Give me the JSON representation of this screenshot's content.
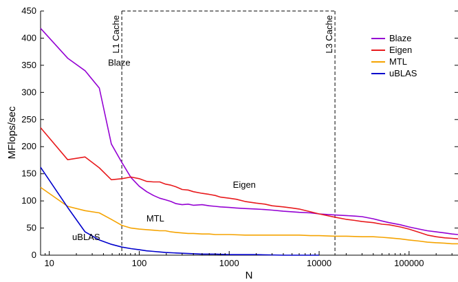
{
  "chart_data": {
    "type": "line",
    "xlabel": "N",
    "ylabel": "MFlops/sec",
    "x_scale": "log",
    "xlim": [
      8,
      350000
    ],
    "ylim": [
      0,
      450
    ],
    "x_ticks": [
      {
        "value": 10,
        "label": "10"
      },
      {
        "value": 100,
        "label": "100"
      },
      {
        "value": 1000,
        "label": "1000"
      },
      {
        "value": 10000,
        "label": "10000"
      },
      {
        "value": 100000,
        "label": "100000"
      }
    ],
    "y_ticks": [
      0,
      50,
      100,
      150,
      200,
      250,
      300,
      350,
      400,
      450
    ],
    "grid": false,
    "legend_position": "top-right",
    "series": [
      {
        "name": "Blaze",
        "color": "#9400d3",
        "points": [
          [
            8,
            418
          ],
          [
            16,
            363
          ],
          [
            25,
            340
          ],
          [
            36,
            308
          ],
          [
            49,
            205
          ],
          [
            64,
            171
          ],
          [
            81,
            143
          ],
          [
            100,
            127
          ],
          [
            121,
            117
          ],
          [
            144,
            110
          ],
          [
            169,
            105
          ],
          [
            196,
            102
          ],
          [
            225,
            99
          ],
          [
            256,
            95
          ],
          [
            300,
            93
          ],
          [
            350,
            94
          ],
          [
            400,
            92
          ],
          [
            500,
            93
          ],
          [
            600,
            91
          ],
          [
            700,
            90
          ],
          [
            800,
            89
          ],
          [
            1000,
            88
          ],
          [
            1200,
            87
          ],
          [
            1500,
            86
          ],
          [
            2000,
            85
          ],
          [
            2500,
            84
          ],
          [
            3000,
            83
          ],
          [
            4000,
            81
          ],
          [
            5000,
            80
          ],
          [
            6000,
            79
          ],
          [
            8000,
            78
          ],
          [
            10000,
            76
          ],
          [
            15000,
            74
          ],
          [
            20000,
            73
          ],
          [
            25000,
            72
          ],
          [
            30000,
            71
          ],
          [
            40000,
            67
          ],
          [
            50000,
            63
          ],
          [
            60000,
            60
          ],
          [
            80000,
            56
          ],
          [
            100000,
            52
          ],
          [
            130000,
            48
          ],
          [
            160000,
            45
          ],
          [
            200000,
            43
          ],
          [
            250000,
            41
          ],
          [
            300000,
            39
          ],
          [
            350000,
            38
          ]
        ]
      },
      {
        "name": "Eigen",
        "color": "#e8191c",
        "points": [
          [
            8,
            235
          ],
          [
            16,
            176
          ],
          [
            25,
            181
          ],
          [
            36,
            161
          ],
          [
            49,
            139
          ],
          [
            64,
            141
          ],
          [
            81,
            144
          ],
          [
            100,
            141
          ],
          [
            121,
            136
          ],
          [
            144,
            135
          ],
          [
            169,
            135
          ],
          [
            196,
            131
          ],
          [
            225,
            129
          ],
          [
            256,
            126
          ],
          [
            300,
            121
          ],
          [
            350,
            120
          ],
          [
            400,
            117
          ],
          [
            500,
            114
          ],
          [
            600,
            112
          ],
          [
            700,
            110
          ],
          [
            800,
            107
          ],
          [
            1000,
            105
          ],
          [
            1200,
            103
          ],
          [
            1500,
            99
          ],
          [
            2000,
            96
          ],
          [
            2500,
            94
          ],
          [
            3000,
            91
          ],
          [
            4000,
            89
          ],
          [
            5000,
            87
          ],
          [
            6000,
            85
          ],
          [
            8000,
            80
          ],
          [
            10000,
            76
          ],
          [
            15000,
            70
          ],
          [
            20000,
            66
          ],
          [
            25000,
            64
          ],
          [
            30000,
            62
          ],
          [
            40000,
            60
          ],
          [
            50000,
            57
          ],
          [
            60000,
            56
          ],
          [
            80000,
            52
          ],
          [
            100000,
            48
          ],
          [
            130000,
            42
          ],
          [
            160000,
            37
          ],
          [
            200000,
            34
          ],
          [
            250000,
            32
          ],
          [
            300000,
            31
          ],
          [
            350000,
            30
          ]
        ]
      },
      {
        "name": "MTL",
        "color": "#f5a300",
        "points": [
          [
            8,
            125
          ],
          [
            16,
            90
          ],
          [
            25,
            82
          ],
          [
            36,
            78
          ],
          [
            49,
            66
          ],
          [
            64,
            55
          ],
          [
            81,
            50
          ],
          [
            100,
            48
          ],
          [
            121,
            47
          ],
          [
            144,
            46
          ],
          [
            169,
            45
          ],
          [
            196,
            45
          ],
          [
            225,
            43
          ],
          [
            256,
            42
          ],
          [
            300,
            41
          ],
          [
            350,
            40
          ],
          [
            400,
            40
          ],
          [
            500,
            39
          ],
          [
            600,
            39
          ],
          [
            700,
            38
          ],
          [
            800,
            38
          ],
          [
            1000,
            38
          ],
          [
            1500,
            37
          ],
          [
            2000,
            37
          ],
          [
            3000,
            37
          ],
          [
            4000,
            37
          ],
          [
            5000,
            37
          ],
          [
            6000,
            37
          ],
          [
            8000,
            36
          ],
          [
            10000,
            36
          ],
          [
            15000,
            35
          ],
          [
            20000,
            35
          ],
          [
            30000,
            34
          ],
          [
            40000,
            34
          ],
          [
            50000,
            33
          ],
          [
            60000,
            32
          ],
          [
            80000,
            30
          ],
          [
            100000,
            28
          ],
          [
            130000,
            26
          ],
          [
            160000,
            24
          ],
          [
            200000,
            23
          ],
          [
            250000,
            22
          ],
          [
            300000,
            21
          ],
          [
            350000,
            21
          ]
        ]
      },
      {
        "name": "uBLAS",
        "color": "#0000cc",
        "points": [
          [
            8,
            162
          ],
          [
            16,
            88
          ],
          [
            25,
            43
          ],
          [
            36,
            28
          ],
          [
            49,
            20
          ],
          [
            64,
            15
          ],
          [
            81,
            12
          ],
          [
            100,
            10
          ],
          [
            121,
            8
          ],
          [
            144,
            7
          ],
          [
            169,
            6
          ],
          [
            196,
            5
          ],
          [
            256,
            4
          ],
          [
            350,
            3
          ],
          [
            500,
            2
          ],
          [
            700,
            2
          ],
          [
            1000,
            1
          ],
          [
            2000,
            1
          ],
          [
            4000,
            0
          ],
          [
            10000,
            0
          ]
        ]
      }
    ],
    "reference_lines": [
      {
        "label": "L1 Cache",
        "x": 64
      },
      {
        "label": "L3 Cache",
        "x": 15000
      }
    ],
    "annotations": [
      {
        "text": "Blaze",
        "x": 45,
        "y": 349
      },
      {
        "text": "Eigen",
        "x": 1100,
        "y": 124
      },
      {
        "text": "MTL",
        "x": 120,
        "y": 62
      },
      {
        "text": "uBLAS",
        "x": 18,
        "y": 28
      }
    ]
  }
}
